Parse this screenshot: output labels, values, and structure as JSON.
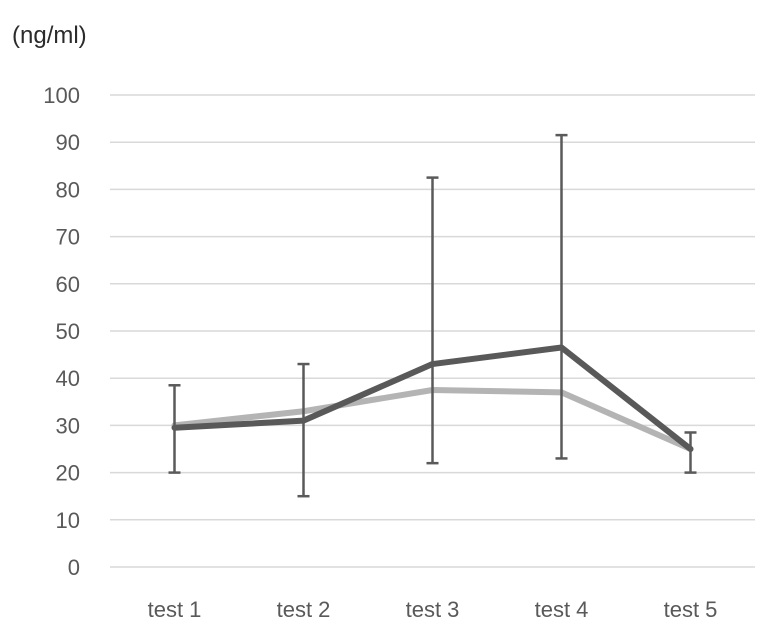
{
  "chart_data": {
    "type": "line",
    "ylabel": "(ng/ml)",
    "categories": [
      "test 1",
      "test 2",
      "test 3",
      "test 4",
      "test 5"
    ],
    "ylim": [
      0,
      100
    ],
    "yticks": [
      0,
      10,
      20,
      30,
      40,
      50,
      60,
      70,
      80,
      90,
      100
    ],
    "grid": true,
    "series": [
      {
        "values": [
          29.5,
          31,
          43,
          46.5,
          25
        ],
        "color": "#595959",
        "error_low": [
          20,
          15,
          22,
          23,
          20
        ],
        "error_high": [
          38.5,
          43,
          82.5,
          91.5,
          28.5
        ]
      },
      {
        "values": [
          30,
          33,
          37.5,
          37,
          25
        ],
        "color": "#b4b4b4"
      }
    ]
  }
}
